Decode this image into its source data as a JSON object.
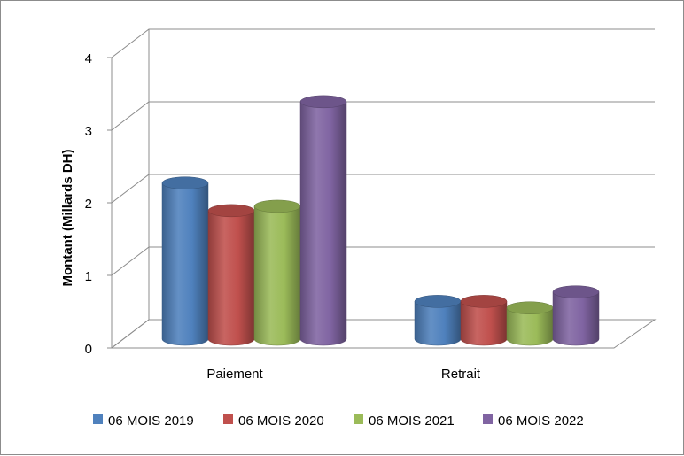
{
  "chart_data": {
    "type": "bar",
    "style": "3d-cylinder",
    "categories": [
      "Paiement",
      "Retrait"
    ],
    "series": [
      {
        "name": "06 MOIS 2019",
        "color": "#4f81bd",
        "values": [
          2.15,
          0.52
        ]
      },
      {
        "name": "06 MOIS 2020",
        "color": "#c0504d",
        "values": [
          1.77,
          0.52
        ]
      },
      {
        "name": "06 MOIS 2021",
        "color": "#9bbb59",
        "values": [
          1.83,
          0.43
        ]
      },
      {
        "name": "06 MOIS 2022",
        "color": "#8064a2",
        "values": [
          3.27,
          0.65
        ]
      }
    ],
    "ylabel": "Montant (Millards DH)",
    "ylim": [
      0,
      4
    ],
    "yticks": [
      "0",
      "1",
      "2",
      "3",
      "4"
    ],
    "grid": true,
    "legend": "bottom"
  }
}
